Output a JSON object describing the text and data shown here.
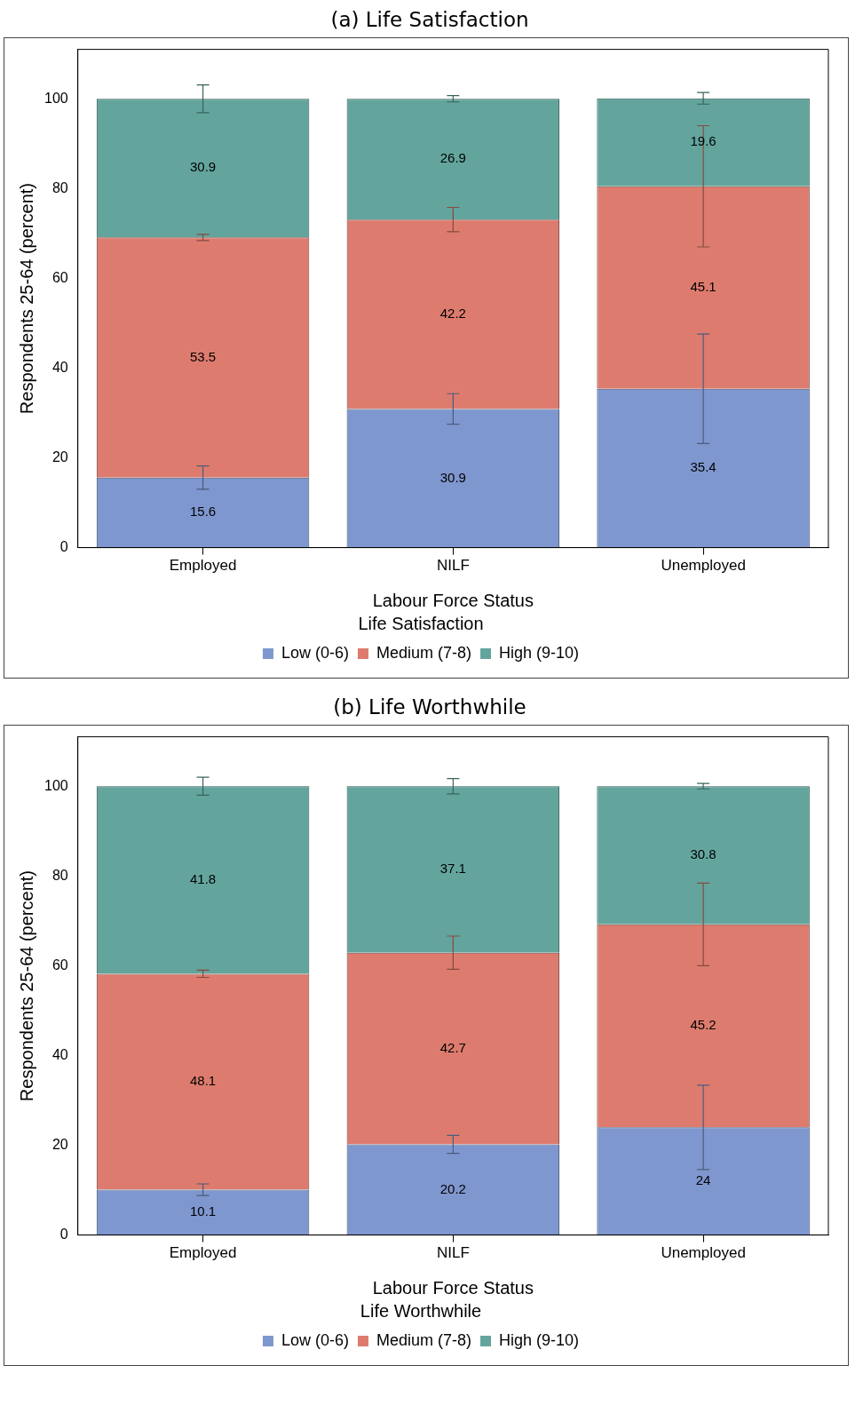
{
  "chart_data": [
    {
      "type": "bar",
      "title": "(a) Life Satisfaction",
      "xlabel": "Labour Force Status",
      "ylabel": "Respondents 25-64 (percent)",
      "legend_title": "Life Satisfaction",
      "categories": [
        "Employed",
        "NILF",
        "Unemployed"
      ],
      "stacked": true,
      "ylim": [
        0,
        111
      ],
      "yticks": [
        0,
        20,
        40,
        60,
        80,
        100
      ],
      "grid": false,
      "legend": "bottom",
      "data_labels": true,
      "series": [
        {
          "name": "Low (0-6)",
          "color": "#7f97cf",
          "values": [
            15.6,
            30.9,
            35.4
          ],
          "errors": [
            2.6,
            3.4,
            12.2
          ]
        },
        {
          "name": "Medium (7-8)",
          "color": "#dd7c6e",
          "values": [
            53.5,
            42.2,
            45.1
          ],
          "errors": [
            0.7,
            2.7,
            13.5
          ]
        },
        {
          "name": "High (9-10)",
          "color": "#63a59d",
          "values": [
            30.9,
            26.9,
            19.6
          ],
          "errors": [
            3.1,
            0.7,
            1.3
          ]
        }
      ]
    },
    {
      "type": "bar",
      "title": "(b) Life Worthwhile",
      "xlabel": "Labour Force Status",
      "ylabel": "Respondents 25-64 (percent)",
      "legend_title": "Life Worthwhile",
      "categories": [
        "Employed",
        "NILF",
        "Unemployed"
      ],
      "stacked": true,
      "ylim": [
        0,
        111
      ],
      "yticks": [
        0,
        20,
        40,
        60,
        80,
        100
      ],
      "grid": false,
      "legend": "bottom",
      "data_labels": true,
      "series": [
        {
          "name": "Low (0-6)",
          "color": "#7f97cf",
          "values": [
            10.1,
            20.2,
            24
          ],
          "errors": [
            1.3,
            2.0,
            9.4
          ]
        },
        {
          "name": "Medium (7-8)",
          "color": "#dd7c6e",
          "values": [
            48.1,
            42.7,
            45.2
          ],
          "errors": [
            0.8,
            3.7,
            9.2
          ]
        },
        {
          "name": "High (9-10)",
          "color": "#63a59d",
          "values": [
            41.8,
            37.1,
            30.8
          ],
          "errors": [
            2.0,
            1.7,
            0.6
          ]
        }
      ]
    }
  ]
}
